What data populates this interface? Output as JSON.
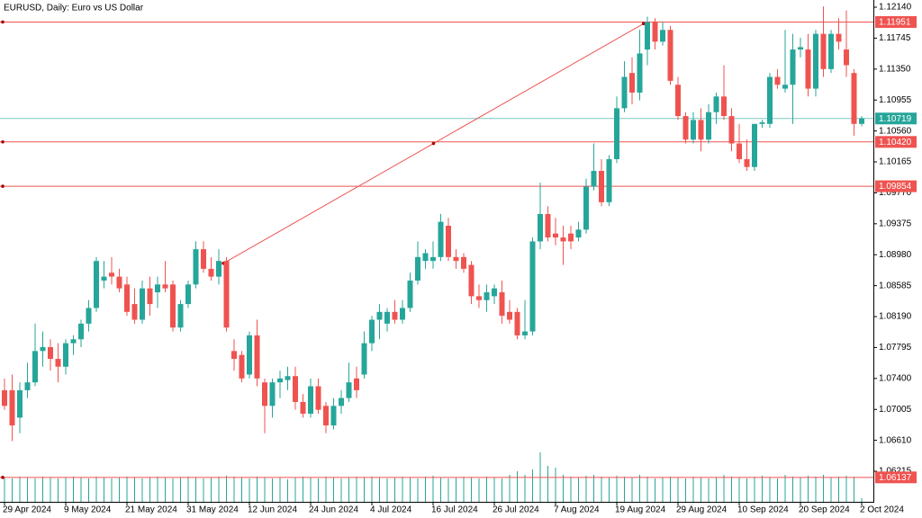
{
  "chart_data": {
    "type": "candlestick",
    "title": "EURUSD, Daily:  Euro vs US Dollar",
    "categories": [
      "29 Apr 2024",
      null,
      null,
      null,
      null,
      null,
      null,
      null,
      "9 May 2024",
      null,
      null,
      null,
      null,
      null,
      null,
      null,
      "21 May 2024",
      null,
      null,
      null,
      null,
      null,
      null,
      null,
      "31 May 2024",
      null,
      null,
      null,
      null,
      null,
      null,
      null,
      "12 Jun 2024",
      null,
      null,
      null,
      null,
      null,
      null,
      null,
      "24 Jun 2024",
      null,
      null,
      null,
      null,
      null,
      null,
      null,
      "4 Jul 2024",
      null,
      null,
      null,
      null,
      null,
      null,
      null,
      "16 Jul 2024",
      null,
      null,
      null,
      null,
      null,
      null,
      null,
      "26 Jul 2024",
      null,
      null,
      null,
      null,
      null,
      null,
      null,
      "7 Aug 2024",
      null,
      null,
      null,
      null,
      null,
      null,
      null,
      "19 Aug 2024",
      null,
      null,
      null,
      null,
      null,
      null,
      null,
      "29 Aug 2024",
      null,
      null,
      null,
      null,
      null,
      null,
      null,
      "10 Sep 2024",
      null,
      null,
      null,
      null,
      null,
      null,
      null,
      "20 Sep 2024",
      null,
      null,
      null,
      null,
      null,
      null,
      null,
      "2 Oct 2024"
    ],
    "open": [
      1.0725,
      1.0725,
      1.069,
      1.0725,
      1.0735,
      1.0775,
      1.078,
      1.0765,
      1.0755,
      1.0785,
      1.079,
      1.081,
      1.083,
      1.0865,
      1.0875,
      1.087,
      1.086,
      1.0835,
      1.0815,
      1.0855,
      1.085,
      1.086,
      1.086,
      1.0805,
      1.0835,
      1.086,
      1.0905,
      1.088,
      1.087,
      1.089,
      1.0775,
      1.077,
      1.0745,
      1.0795,
      1.0735,
      1.0705,
      1.0735,
      1.0738,
      1.0743,
      1.071,
      1.0695,
      1.073,
      1.0705,
      1.068,
      1.0705,
      1.0715,
      1.074,
      1.0745,
      1.0785,
      1.0815,
      1.081,
      1.0825,
      1.0815,
      1.083,
      1.0865,
      1.089,
      1.089,
      1.0895,
      1.0935,
      1.0895,
      1.0895,
      1.0885,
      1.0845,
      1.084,
      1.0845,
      1.085,
      1.0825,
      1.0825,
      1.0795,
      1.08,
      1.0915,
      1.095,
      1.0925,
      1.092,
      1.0925,
      1.092,
      1.093,
      1.0985,
      1.1005,
      1.0965,
      1.102,
      1.1085,
      1.113,
      1.1105,
      1.116,
      1.1195,
      1.117,
      1.1185,
      1.1115,
      1.1075,
      1.1045,
      1.107,
      1.1045,
      1.108,
      1.11,
      1.1075,
      1.104,
      1.102,
      1.101,
      1.1065,
      1.1065,
      1.1125,
      1.111,
      1.1115,
      1.116,
      1.116,
      1.111,
      1.118,
      1.1135,
      1.118,
      1.116,
      1.113,
      1.1065
    ],
    "high": [
      1.074,
      1.0745,
      1.0735,
      1.076,
      1.081,
      1.08,
      1.079,
      1.0785,
      1.079,
      1.0795,
      1.0815,
      1.084,
      1.0895,
      1.089,
      1.0895,
      1.088,
      1.087,
      1.0855,
      1.0865,
      1.087,
      1.087,
      1.089,
      1.0865,
      1.084,
      1.0865,
      1.0915,
      1.0915,
      1.0895,
      1.0905,
      1.0895,
      1.079,
      1.0775,
      1.08,
      1.0815,
      1.074,
      1.074,
      1.075,
      1.0755,
      1.0755,
      1.072,
      1.074,
      1.074,
      1.071,
      1.0715,
      1.0725,
      1.076,
      1.0755,
      1.08,
      1.082,
      1.0835,
      1.083,
      1.084,
      1.084,
      1.0875,
      1.0915,
      1.0905,
      1.0915,
      1.095,
      1.0945,
      1.0905,
      1.09,
      1.089,
      1.086,
      1.086,
      1.086,
      1.0865,
      1.084,
      1.083,
      1.084,
      1.092,
      1.099,
      1.096,
      1.0945,
      1.0935,
      1.0935,
      1.094,
      1.0995,
      1.104,
      1.102,
      1.1025,
      1.11,
      1.1145,
      1.115,
      1.1185,
      1.1202,
      1.12,
      1.1195,
      1.119,
      1.1125,
      1.108,
      1.108,
      1.1085,
      1.109,
      1.1105,
      1.114,
      1.1085,
      1.1065,
      1.1045,
      1.1065,
      1.107,
      1.113,
      1.1135,
      1.1185,
      1.118,
      1.1175,
      1.118,
      1.1185,
      1.1215,
      1.1185,
      1.12,
      1.121,
      1.1135,
      1.1075
    ],
    "low": [
      1.07,
      1.066,
      1.067,
      1.0715,
      1.073,
      1.0755,
      1.075,
      1.0735,
      1.0745,
      1.077,
      1.078,
      1.08,
      1.0825,
      1.0855,
      1.086,
      1.085,
      1.082,
      1.081,
      1.081,
      1.082,
      1.083,
      1.085,
      1.08,
      1.08,
      1.083,
      1.0855,
      1.0875,
      1.0865,
      1.086,
      1.08,
      1.075,
      1.0735,
      1.074,
      1.073,
      1.067,
      1.069,
      1.0715,
      1.0725,
      1.07,
      1.069,
      1.069,
      1.0695,
      1.067,
      1.0675,
      1.0695,
      1.071,
      1.0715,
      1.074,
      1.0775,
      1.079,
      1.08,
      1.081,
      1.081,
      1.0825,
      1.086,
      1.088,
      1.088,
      1.089,
      1.089,
      1.088,
      1.0875,
      1.0835,
      1.083,
      1.0825,
      1.0835,
      1.081,
      1.081,
      1.079,
      1.079,
      1.0795,
      1.0905,
      1.0915,
      1.091,
      1.0885,
      1.0905,
      1.0915,
      1.0925,
      1.098,
      1.096,
      1.096,
      1.1015,
      1.108,
      1.109,
      1.1095,
      1.114,
      1.116,
      1.1165,
      1.1115,
      1.107,
      1.104,
      1.104,
      1.103,
      1.104,
      1.1065,
      1.107,
      1.103,
      1.1015,
      1.1005,
      1.1005,
      1.106,
      1.106,
      1.111,
      1.1105,
      1.1065,
      1.115,
      1.11,
      1.11,
      1.1125,
      1.113,
      1.116,
      1.1125,
      1.105,
      1.1062
    ],
    "close": [
      1.0705,
      1.068,
      1.0725,
      1.0735,
      1.0775,
      1.078,
      1.0765,
      1.0755,
      1.0785,
      1.079,
      1.081,
      1.083,
      1.089,
      1.087,
      1.087,
      1.0855,
      1.0825,
      1.0815,
      1.0855,
      1.0835,
      1.086,
      1.0855,
      1.0805,
      1.0835,
      1.086,
      1.0905,
      1.088,
      1.087,
      1.089,
      1.0805,
      1.0765,
      1.074,
      1.0795,
      1.074,
      1.0705,
      1.0735,
      1.074,
      1.0743,
      1.071,
      1.0695,
      1.073,
      1.07,
      1.068,
      1.0705,
      1.0715,
      1.0735,
      1.0725,
      1.0785,
      1.0815,
      1.0825,
      1.0825,
      1.0815,
      1.083,
      1.0865,
      1.0895,
      1.09,
      1.0895,
      1.094,
      1.0895,
      1.089,
      1.088,
      1.0845,
      1.084,
      1.085,
      1.0855,
      1.082,
      1.0815,
      1.0795,
      1.08,
      1.0915,
      1.095,
      1.092,
      1.092,
      1.0915,
      1.0915,
      1.093,
      1.0985,
      1.1005,
      1.0965,
      1.102,
      1.1085,
      1.1125,
      1.1105,
      1.1155,
      1.1195,
      1.117,
      1.1185,
      1.112,
      1.1075,
      1.1045,
      1.107,
      1.1045,
      1.108,
      1.11,
      1.1075,
      1.104,
      1.102,
      1.101,
      1.1065,
      1.1067,
      1.1125,
      1.1115,
      1.1115,
      1.116,
      1.1163,
      1.111,
      1.118,
      1.1135,
      1.118,
      1.117,
      1.114,
      1.1065,
      1.1072
    ],
    "volume": [
      27,
      26,
      28,
      27,
      26,
      28,
      27,
      26,
      27,
      28,
      27,
      26,
      28,
      27,
      26,
      27,
      28,
      27,
      26,
      27,
      28,
      27,
      26,
      27,
      28,
      27,
      26,
      27,
      28,
      29,
      28,
      27,
      26,
      28,
      27,
      26,
      27,
      25,
      27,
      28,
      27,
      26,
      28,
      27,
      26,
      27,
      28,
      27,
      28,
      27,
      26,
      27,
      28,
      27,
      26,
      28,
      29,
      27,
      26,
      27,
      28,
      27,
      26,
      28,
      27,
      26,
      30,
      34,
      30,
      36,
      55,
      40,
      38,
      30,
      28,
      27,
      29,
      30,
      28,
      27,
      29,
      28,
      27,
      30,
      28,
      26,
      27,
      28,
      27,
      26,
      28,
      27,
      26,
      27,
      30,
      28,
      27,
      26,
      28,
      29,
      27,
      26,
      30,
      28,
      27,
      29,
      28,
      30,
      27,
      28,
      29,
      28,
      4
    ],
    "up_color": "#26a69a",
    "down_color": "#ef5350",
    "ylim": [
      1.05825,
      1.12232
    ],
    "yticks": [
      {
        "value": 1.1214,
        "label": "1.12140"
      },
      1.11745,
      {
        "value": 1.1135,
        "label": "1.11350"
      },
      1.10955,
      {
        "value": 1.1056,
        "label": "1.10560"
      },
      1.10165,
      {
        "value": 1.0977,
        "label": "1.09770"
      },
      1.09375,
      {
        "value": 1.0898,
        "label": "1.08980"
      },
      1.08585,
      {
        "value": 1.0819,
        "label": "1.08190"
      },
      1.07795,
      {
        "value": 1.074,
        "label": "1.07400"
      },
      1.07005,
      {
        "value": 1.0661,
        "label": "1.06610"
      },
      1.06215
    ],
    "price_lines": [
      {
        "price": 1.11951,
        "color": "#ef5350"
      },
      {
        "price": 1.10719,
        "color": "#26a69a"
      },
      {
        "price": 1.1042,
        "label": "1.10420",
        "color": "#ef5350"
      },
      {
        "price": 1.09854,
        "color": "#ef5350"
      },
      {
        "price": 1.06137,
        "color": "#ef5350"
      }
    ],
    "trendline": {
      "from": 1.0887,
      "to": 1.1193,
      "color": "#ef5350"
    }
  }
}
